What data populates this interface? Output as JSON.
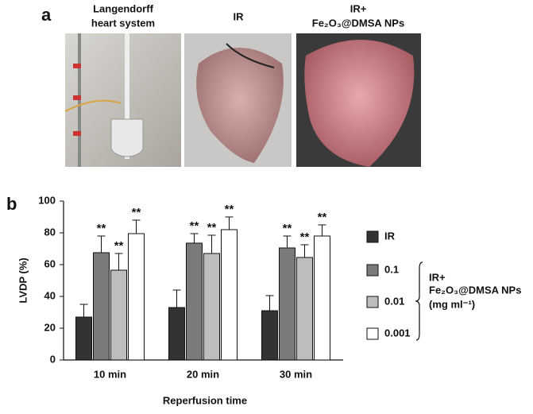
{
  "panel_a": {
    "label": "a",
    "images": [
      {
        "title": [
          "Langendorff",
          "heart system"
        ]
      },
      {
        "title": [
          "IR"
        ]
      },
      {
        "title": [
          "IR+",
          "Fe₂O₃@DMSA NPs"
        ]
      }
    ]
  },
  "chart_data": {
    "type": "bar",
    "panel_label": "b",
    "y_label": "LVDP (%)",
    "x_label": "Reperfusion time",
    "categories": [
      "10 min",
      "20 min",
      "30 min"
    ],
    "series": [
      {
        "name": "IR",
        "color": "#333333",
        "values": [
          27,
          33,
          31
        ],
        "errors": [
          8,
          11,
          9.5
        ],
        "significance": [
          null,
          null,
          null
        ]
      },
      {
        "name": "0.1",
        "color": "#7a7a7a",
        "values": [
          67.5,
          73.5,
          70.5
        ],
        "errors": [
          10.5,
          6,
          7.5
        ],
        "significance": [
          "**",
          "**",
          "**"
        ]
      },
      {
        "name": "0.01",
        "color": "#bdbdbd",
        "values": [
          56.5,
          67,
          64.5
        ],
        "errors": [
          10.5,
          11.5,
          8
        ],
        "significance": [
          "**",
          "**",
          "**"
        ]
      },
      {
        "name": "0.001",
        "color": "#ffffff",
        "values": [
          79.5,
          82,
          78
        ],
        "errors": [
          8.5,
          8,
          7
        ],
        "significance": [
          "**",
          "**",
          "**"
        ]
      }
    ],
    "legend_group_label": [
      "IR+",
      "Fe₂O₃@DMSA NPs",
      "(mg ml⁻¹)"
    ],
    "ylim": [
      0,
      100
    ],
    "yticks": [
      0,
      20,
      40,
      60,
      80,
      100
    ]
  }
}
